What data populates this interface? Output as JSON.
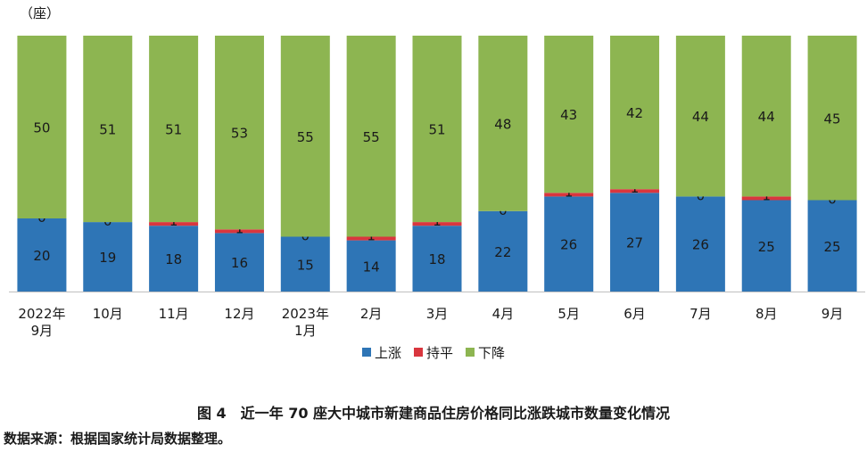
{
  "chart_data": {
    "type": "bar",
    "stacked": true,
    "unit_label": "（座）",
    "categories": [
      "2022年\n9月",
      "10月",
      "11月",
      "12月",
      "2023年\n1月",
      "2月",
      "3月",
      "4月",
      "5月",
      "6月",
      "7月",
      "8月",
      "9月"
    ],
    "series": [
      {
        "name": "上涨",
        "color": "#2e75b6",
        "values": [
          20,
          19,
          18,
          16,
          15,
          14,
          18,
          22,
          26,
          27,
          26,
          25,
          25
        ]
      },
      {
        "name": "持平",
        "color": "#d9363e",
        "values": [
          0,
          0,
          1,
          1,
          0,
          1,
          1,
          0,
          1,
          1,
          0,
          1,
          0
        ]
      },
      {
        "name": "下降",
        "color": "#8db551",
        "values": [
          50,
          51,
          51,
          53,
          55,
          55,
          51,
          48,
          43,
          42,
          44,
          44,
          45
        ]
      }
    ],
    "ylim": [
      0,
      70
    ],
    "legend_position": "bottom",
    "grid": false
  },
  "caption": "图 4　近一年 70 座大中城市新建商品住房价格同比涨跌城市数量变化情况",
  "source": "数据来源：根据国家统计局数据整理。"
}
